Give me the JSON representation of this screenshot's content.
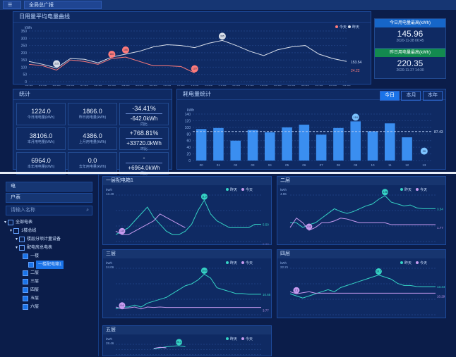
{
  "topbar": {
    "menu_btn": "☰",
    "tab_label": "全局总广报"
  },
  "trend": {
    "title": "日用量平均电量曲线",
    "ylabel": "kWh",
    "y_ticks": [
      "350",
      "300",
      "250",
      "200",
      "150",
      "100",
      "50",
      "0"
    ],
    "x_ticks": [
      "00:00",
      "01:00",
      "02:00",
      "03:00",
      "04:00",
      "05:00",
      "06:00",
      "07:00",
      "08:00",
      "09:00",
      "10:00",
      "11:00",
      "12:00",
      "13:00",
      "14:00",
      "15:00",
      "16:00",
      "17:00",
      "18:00",
      "19:00",
      "20:00",
      "21:00",
      "22:00",
      "23:00"
    ],
    "legend_today": "今天",
    "legend_yesterday": "昨天",
    "end_label_today": "153.54",
    "end_label_yesterday": "24.22",
    "marker_labels": [
      "215",
      "180",
      "155",
      "335",
      "120"
    ],
    "chart_data": {
      "type": "line",
      "categories": [
        "00:00",
        "01:00",
        "02:00",
        "03:00",
        "04:00",
        "05:00",
        "06:00",
        "07:00",
        "08:00",
        "09:00",
        "10:00",
        "11:00",
        "12:00",
        "13:00",
        "14:00",
        "15:00",
        "16:00",
        "17:00",
        "18:00",
        "19:00",
        "20:00",
        "21:00",
        "22:00",
        "23:00"
      ],
      "series": [
        {
          "name": "今天",
          "color": "#ff7b7b",
          "values": [
            120,
            110,
            80,
            150,
            140,
            120,
            160,
            170,
            140,
            110,
            110,
            105,
            60,
            null,
            null,
            null,
            null,
            null,
            null,
            null,
            null,
            null,
            null,
            null
          ]
        },
        {
          "name": "昨天",
          "color": "#d8dee9",
          "values": [
            140,
            120,
            95,
            160,
            155,
            130,
            170,
            190,
            210,
            240,
            255,
            250,
            235,
            265,
            285,
            250,
            210,
            180,
            220,
            240,
            250,
            190,
            160,
            140
          ]
        }
      ],
      "ylim": [
        0,
        350
      ]
    }
  },
  "stats_right": {
    "today_label": "今日用电量最高(kWh)",
    "today_value": "145.96",
    "today_time": "2020-11-28 06:45",
    "yesterday_label": "昨日用电量最高(kWh)",
    "yesterday_value": "220.35",
    "yesterday_time": "2020-11-27 14:30"
  },
  "summary": {
    "title": "统计",
    "cells": [
      {
        "value": "1224.0",
        "label": "今日用电量(kWh)"
      },
      {
        "value": "1866.0",
        "label": "昨日用电量(kWh)"
      },
      {
        "value": "-34.41%",
        "value2": "-642.0kWh",
        "label": "同比"
      },
      {
        "value": "38106.0",
        "label": "本月用电量(kWh)"
      },
      {
        "value": "4386.0",
        "label": "上月用电量(kWh)"
      },
      {
        "value": "+768.81%",
        "value2": "+33720.0kWh",
        "label": "环比"
      },
      {
        "value": "6964.0",
        "label": "本年用电量(kWh)"
      },
      {
        "value": "0.0",
        "label": "去年用电量(kWh)"
      },
      {
        "value": "-",
        "value2": "+6964.0kWh",
        "label": "同比"
      }
    ]
  },
  "bar": {
    "title": "耗电量统计",
    "tabs": [
      "今日",
      "本月",
      "本年"
    ],
    "ylabel": "kWh",
    "avg_label": "87.43",
    "chart_data": {
      "type": "bar",
      "categories": [
        "00",
        "01",
        "02",
        "03",
        "04",
        "05",
        "06",
        "07",
        "08",
        "09",
        "10",
        "11",
        "12",
        "13"
      ],
      "values": [
        95,
        98,
        60,
        92,
        85,
        100,
        108,
        78,
        98,
        118,
        88,
        112,
        70,
        20
      ],
      "ylim": [
        0,
        140
      ],
      "peak_label": "118",
      "low_label": "20"
    },
    "y_ticks": [
      "140",
      "120",
      "100",
      "80",
      "60",
      "40",
      "20",
      "0"
    ]
  },
  "left2": {
    "select1": "电",
    "select2": "户表",
    "search_placeholder": "请输入名称",
    "tree": [
      {
        "label": "全部电表",
        "level": 0,
        "checked": false
      },
      {
        "label": "1楼总线",
        "level": 1,
        "checked": false
      },
      {
        "label": "楼层分项计量设备",
        "level": 2,
        "checked": false
      },
      {
        "label": "配电房总电表",
        "level": 2,
        "checked": false
      },
      {
        "label": "一楼",
        "level": 3,
        "checked": true
      },
      {
        "label": "一楼配电箱1",
        "level": 4,
        "checked": true
      },
      {
        "label": "二层",
        "level": 3,
        "checked": true
      },
      {
        "label": "三层",
        "level": 3,
        "checked": true
      },
      {
        "label": "四层",
        "level": 3,
        "checked": true
      },
      {
        "label": "五层",
        "level": 3,
        "checked": true
      },
      {
        "label": "六层",
        "level": 3,
        "checked": true
      }
    ]
  },
  "mini": {
    "legend_a": "昨天",
    "legend_b": "今天",
    "ylabel": "kWh",
    "charts": [
      {
        "title": "一层配电箱1",
        "max": "13.49",
        "end_a": "5.50",
        "end_b": "0.38",
        "peak": "11.9",
        "low": "1.8"
      },
      {
        "title": "二层",
        "max": "4.96",
        "end_a": "3.54",
        "end_b": "1.77",
        "peak": "4.96",
        "low": "0.8"
      },
      {
        "title": "三层",
        "max": "24.06",
        "end_a": "10.65",
        "end_b": "3.77",
        "peak": "20.6",
        "low": "0.4"
      },
      {
        "title": "四层",
        "max": "22.21",
        "end_a": "13.44",
        "end_b": "10.29",
        "peak": "18.7",
        "low": "2.1"
      },
      {
        "title": "五层",
        "max": "28.46",
        "end_a": "",
        "end_b": "",
        "peak": "25.1",
        "low": ""
      }
    ],
    "x_ticks": [
      "00",
      "01",
      "02",
      "03",
      "04",
      "05",
      "06",
      "07",
      "08",
      "09",
      "10",
      "11",
      "12",
      "13",
      "14",
      "15",
      "16",
      "17",
      "18",
      "19",
      "20",
      "21",
      "22",
      "23"
    ]
  }
}
